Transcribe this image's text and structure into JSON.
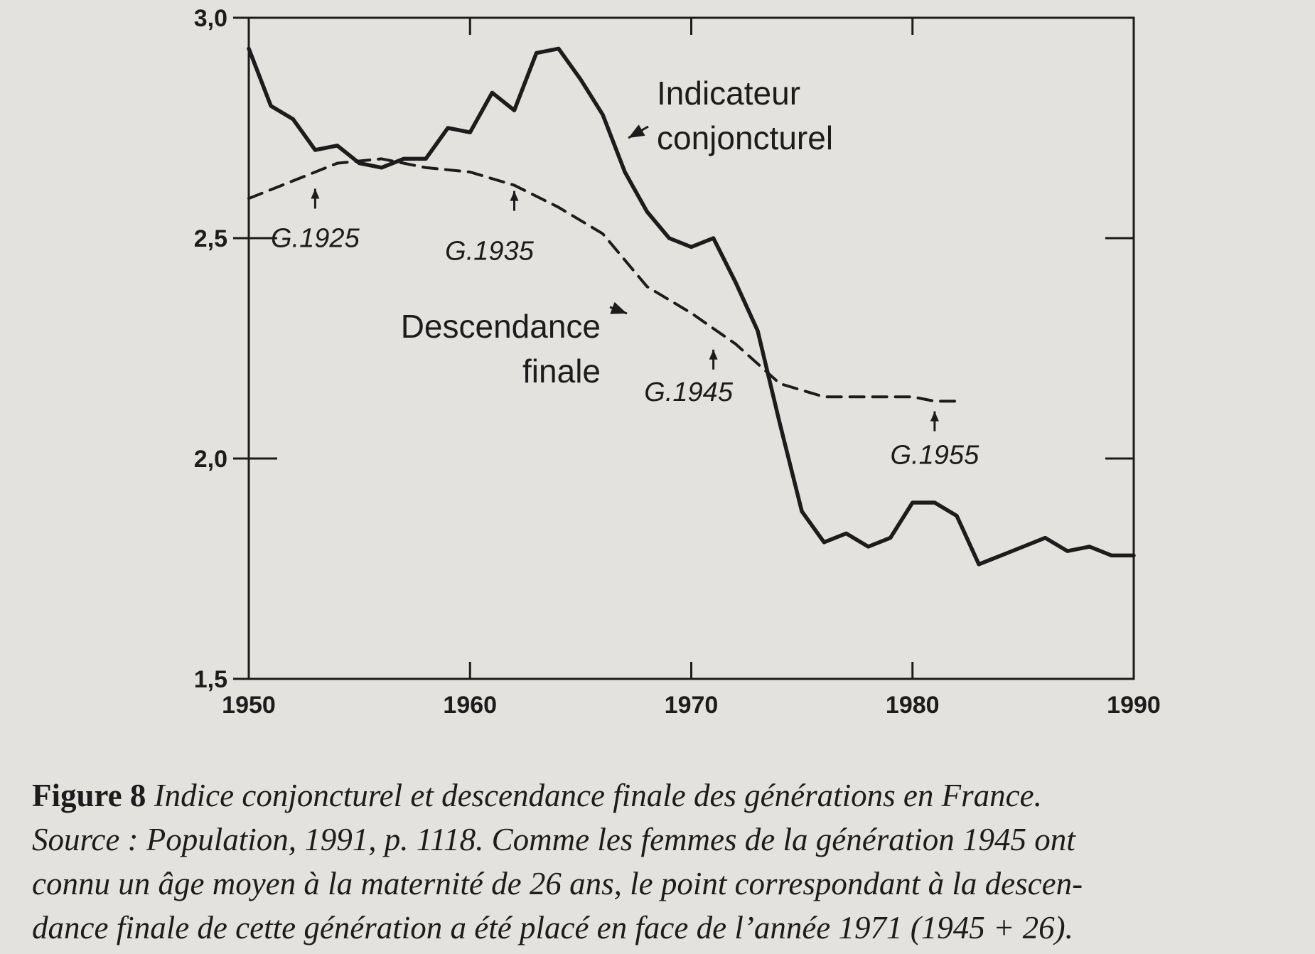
{
  "chart_data": {
    "type": "line",
    "title": "",
    "xlabel": "",
    "ylabel": "",
    "xlim": [
      1950,
      1990
    ],
    "ylim": [
      1.5,
      3.0
    ],
    "x_ticks": [
      "1950",
      "1960",
      "1970",
      "1980",
      "1990"
    ],
    "y_ticks": [
      "1,5",
      "2,0",
      "2,5",
      "3,0"
    ],
    "grid": false,
    "series": [
      {
        "name": "Indicateur conjoncturel",
        "style": "solid",
        "x": [
          1950,
          1951,
          1952,
          1953,
          1954,
          1955,
          1956,
          1957,
          1958,
          1959,
          1960,
          1961,
          1962,
          1963,
          1964,
          1965,
          1966,
          1967,
          1968,
          1969,
          1970,
          1971,
          1972,
          1973,
          1974,
          1975,
          1976,
          1977,
          1978,
          1979,
          1980,
          1981,
          1982,
          1983,
          1984,
          1985,
          1986,
          1987,
          1988,
          1989,
          1990
        ],
        "values": [
          2.93,
          2.8,
          2.77,
          2.7,
          2.71,
          2.67,
          2.66,
          2.68,
          2.68,
          2.75,
          2.74,
          2.83,
          2.79,
          2.92,
          2.93,
          2.86,
          2.78,
          2.65,
          2.56,
          2.5,
          2.48,
          2.5,
          2.4,
          2.29,
          2.08,
          1.88,
          1.81,
          1.83,
          1.8,
          1.82,
          1.9,
          1.9,
          1.87,
          1.76,
          1.78,
          1.8,
          1.82,
          1.79,
          1.8,
          1.78,
          1.78
        ]
      },
      {
        "name": "Descendance finale",
        "style": "dashed",
        "x": [
          1950,
          1952,
          1954,
          1956,
          1958,
          1960,
          1962,
          1964,
          1966,
          1968,
          1970,
          1972,
          1974,
          1976,
          1978,
          1980,
          1981,
          1982
        ],
        "values": [
          2.59,
          2.63,
          2.67,
          2.68,
          2.66,
          2.65,
          2.62,
          2.57,
          2.51,
          2.39,
          2.33,
          2.26,
          2.17,
          2.14,
          2.14,
          2.14,
          2.13,
          2.13
        ]
      }
    ],
    "labels": {
      "indicateur_1": "Indicateur",
      "indicateur_2": "conjoncturel",
      "descendance_1": "Descendance",
      "descendance_2": "finale"
    },
    "generation_annotations": [
      {
        "label": "G.1925",
        "x": 1953,
        "y": 2.625
      },
      {
        "label": "G.1935",
        "x": 1962,
        "y": 2.62
      },
      {
        "label": "G.1945",
        "x": 1971,
        "y": 2.26
      },
      {
        "label": "G.1955",
        "x": 1981,
        "y": 2.12
      }
    ]
  },
  "caption": {
    "figure_number": "Figure 8",
    "figure_title": "Indice conjoncturel et descendance finale des générations en France.",
    "line2": "Source : Population, 1991, p. 1118. Comme les femmes de la génération 1945 ont",
    "line3": "connu un âge moyen à la maternité de 26 ans, le point correspondant à la descen-",
    "line4": "dance finale de cette génération a été placé en face de l’année 1971 (1945 + 26)."
  },
  "colors": {
    "paper": "#e4e2de",
    "ink": "#1c1c1c"
  }
}
